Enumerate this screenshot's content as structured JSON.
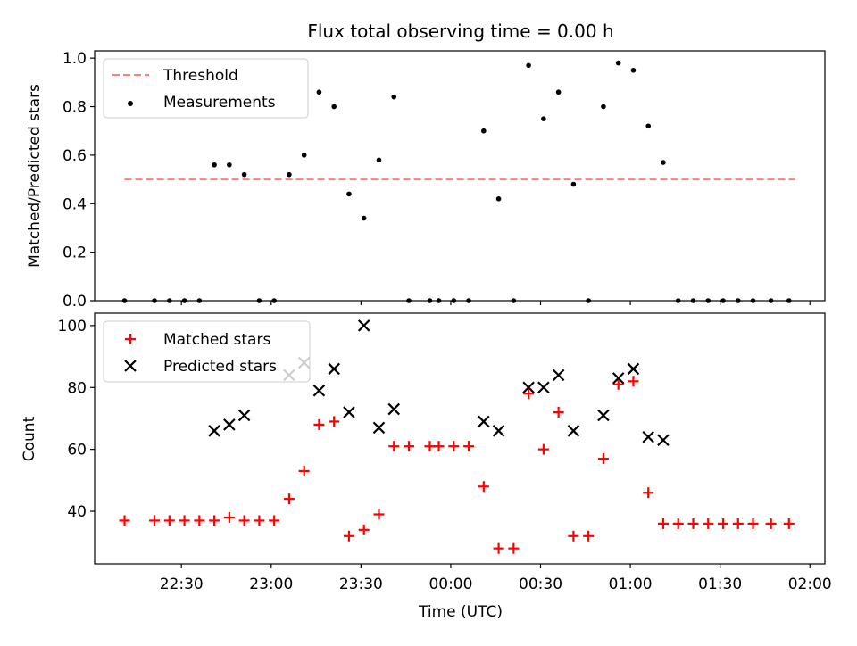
{
  "chart_data": [
    {
      "type": "scatter",
      "panel": "top",
      "title": "Flux total observing time = 0.00 h",
      "xlabel": "",
      "ylabel": "Matched/Predicted stars",
      "ylim": [
        0,
        1.03
      ],
      "yticks": [
        0.0,
        0.2,
        0.4,
        0.6,
        0.8,
        1.0
      ],
      "ytick_labels": [
        "0.0",
        "0.2",
        "0.4",
        "0.6",
        "0.8",
        "1.0"
      ],
      "grid": false,
      "legend_position": "top-left",
      "legend": [
        "Threshold",
        "Measurements"
      ],
      "threshold": {
        "name": "Threshold",
        "value": 0.5,
        "x_start": "22:11",
        "x_end": "01:55",
        "color": "#ff7f7f",
        "style": "dashed"
      },
      "series": [
        {
          "name": "Measurements",
          "color": "#000000",
          "marker": "dot",
          "points": [
            [
              "22:11",
              0.0
            ],
            [
              "22:21",
              0.0
            ],
            [
              "22:26",
              0.0
            ],
            [
              "22:31",
              0.0
            ],
            [
              "22:36",
              0.0
            ],
            [
              "22:41",
              0.56
            ],
            [
              "22:46",
              0.56
            ],
            [
              "22:51",
              0.52
            ],
            [
              "22:56",
              0.0
            ],
            [
              "23:01",
              0.0
            ],
            [
              "23:06",
              0.52
            ],
            [
              "23:11",
              0.6
            ],
            [
              "23:16",
              0.86
            ],
            [
              "23:21",
              0.8
            ],
            [
              "23:26",
              0.44
            ],
            [
              "23:31",
              0.34
            ],
            [
              "23:36",
              0.58
            ],
            [
              "23:41",
              0.84
            ],
            [
              "23:46",
              0.0
            ],
            [
              "23:53",
              0.0
            ],
            [
              "23:56",
              0.0
            ],
            [
              "00:01",
              0.0
            ],
            [
              "00:06",
              0.0
            ],
            [
              "00:11",
              0.7
            ],
            [
              "00:16",
              0.42
            ],
            [
              "00:21",
              0.0
            ],
            [
              "00:26",
              0.97
            ],
            [
              "00:31",
              0.75
            ],
            [
              "00:36",
              0.86
            ],
            [
              "00:41",
              0.48
            ],
            [
              "00:46",
              0.0
            ],
            [
              "00:51",
              0.8
            ],
            [
              "00:56",
              0.98
            ],
            [
              "01:01",
              0.95
            ],
            [
              "01:06",
              0.72
            ],
            [
              "01:11",
              0.57
            ],
            [
              "01:16",
              0.0
            ],
            [
              "01:21",
              0.0
            ],
            [
              "01:26",
              0.0
            ],
            [
              "01:31",
              0.0
            ],
            [
              "01:36",
              0.0
            ],
            [
              "01:41",
              0.0
            ],
            [
              "01:47",
              0.0
            ],
            [
              "01:53",
              0.0
            ]
          ]
        }
      ]
    },
    {
      "type": "scatter",
      "panel": "bottom",
      "title": "",
      "xlabel": "Time (UTC)",
      "ylabel": "Count",
      "ylim": [
        23,
        104
      ],
      "yticks": [
        40,
        60,
        80,
        100
      ],
      "ytick_labels": [
        "40",
        "60",
        "80",
        "100"
      ],
      "xlim": [
        "22:01",
        "02:05"
      ],
      "xticks": [
        "22:30",
        "23:00",
        "23:30",
        "00:00",
        "00:30",
        "01:00",
        "01:30",
        "02:00"
      ],
      "grid": false,
      "legend_position": "top-left",
      "legend": [
        "Matched stars",
        "Predicted stars"
      ],
      "series": [
        {
          "name": "Matched stars",
          "color": "#ff0000",
          "marker": "plus",
          "points": [
            [
              "22:11",
              37
            ],
            [
              "22:21",
              37
            ],
            [
              "22:26",
              37
            ],
            [
              "22:31",
              37
            ],
            [
              "22:36",
              37
            ],
            [
              "22:41",
              37
            ],
            [
              "22:46",
              38
            ],
            [
              "22:51",
              37
            ],
            [
              "22:56",
              37
            ],
            [
              "23:01",
              37
            ],
            [
              "23:06",
              44
            ],
            [
              "23:11",
              53
            ],
            [
              "23:16",
              68
            ],
            [
              "23:21",
              69
            ],
            [
              "23:26",
              32
            ],
            [
              "23:31",
              34
            ],
            [
              "23:36",
              39
            ],
            [
              "23:41",
              61
            ],
            [
              "23:46",
              61
            ],
            [
              "23:53",
              61
            ],
            [
              "23:56",
              61
            ],
            [
              "00:01",
              61
            ],
            [
              "00:06",
              61
            ],
            [
              "00:11",
              48
            ],
            [
              "00:16",
              28
            ],
            [
              "00:21",
              28
            ],
            [
              "00:26",
              78
            ],
            [
              "00:31",
              60
            ],
            [
              "00:36",
              72
            ],
            [
              "00:41",
              32
            ],
            [
              "00:46",
              32
            ],
            [
              "00:51",
              57
            ],
            [
              "00:56",
              81
            ],
            [
              "01:01",
              82
            ],
            [
              "01:06",
              46
            ],
            [
              "01:11",
              36
            ],
            [
              "01:16",
              36
            ],
            [
              "01:21",
              36
            ],
            [
              "01:26",
              36
            ],
            [
              "01:31",
              36
            ],
            [
              "01:36",
              36
            ],
            [
              "01:41",
              36
            ],
            [
              "01:47",
              36
            ],
            [
              "01:53",
              36
            ]
          ]
        },
        {
          "name": "Predicted stars",
          "color": "#000000",
          "marker": "x",
          "points": [
            [
              "22:41",
              66
            ],
            [
              "22:46",
              68
            ],
            [
              "22:51",
              71
            ],
            [
              "23:06",
              84
            ],
            [
              "23:11",
              88
            ],
            [
              "23:16",
              79
            ],
            [
              "23:21",
              86
            ],
            [
              "23:26",
              72
            ],
            [
              "23:31",
              100
            ],
            [
              "23:36",
              67
            ],
            [
              "23:41",
              73
            ],
            [
              "00:11",
              69
            ],
            [
              "00:16",
              66
            ],
            [
              "00:26",
              80
            ],
            [
              "00:31",
              80
            ],
            [
              "00:36",
              84
            ],
            [
              "00:41",
              66
            ],
            [
              "00:51",
              71
            ],
            [
              "00:56",
              83
            ],
            [
              "01:01",
              86
            ],
            [
              "01:06",
              64
            ],
            [
              "01:11",
              63
            ]
          ]
        }
      ]
    }
  ]
}
